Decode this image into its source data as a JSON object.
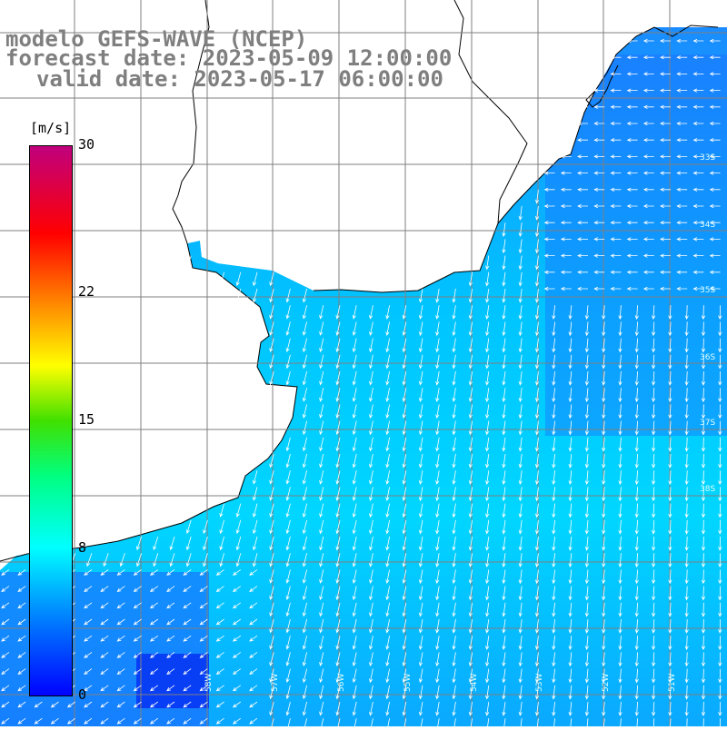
{
  "title": {
    "line1": "modelo GEFS-WAVE (NCEP)",
    "line2": "forecast date: 2023-05-09 12:00:00",
    "line3": "valid date: 2023-05-17 06:00:00"
  },
  "colorbar": {
    "units": "[m/s]",
    "ticks": [
      "30",
      "22",
      "15",
      "8",
      "0"
    ],
    "tick_values": [
      30,
      22,
      15,
      8,
      0
    ],
    "range": [
      0,
      30
    ],
    "colors": [
      "#0000ff",
      "#00a0ff",
      "#00ffff",
      "#00ff00",
      "#ffff00",
      "#ff8000",
      "#ff0000",
      "#c00080"
    ]
  },
  "map": {
    "lat_labels": [
      "33S",
      "34S",
      "35S",
      "36S",
      "37S",
      "38S"
    ],
    "lon_labels": [
      "58W",
      "57W",
      "56W",
      "55W",
      "54W",
      "53W",
      "52W",
      "51W"
    ],
    "ocean_color": "#00ccff",
    "land_color": "#ffffff",
    "vector_color": "#ffffff",
    "coast_color": "#000000",
    "grid_color": "#7f7f7f"
  }
}
